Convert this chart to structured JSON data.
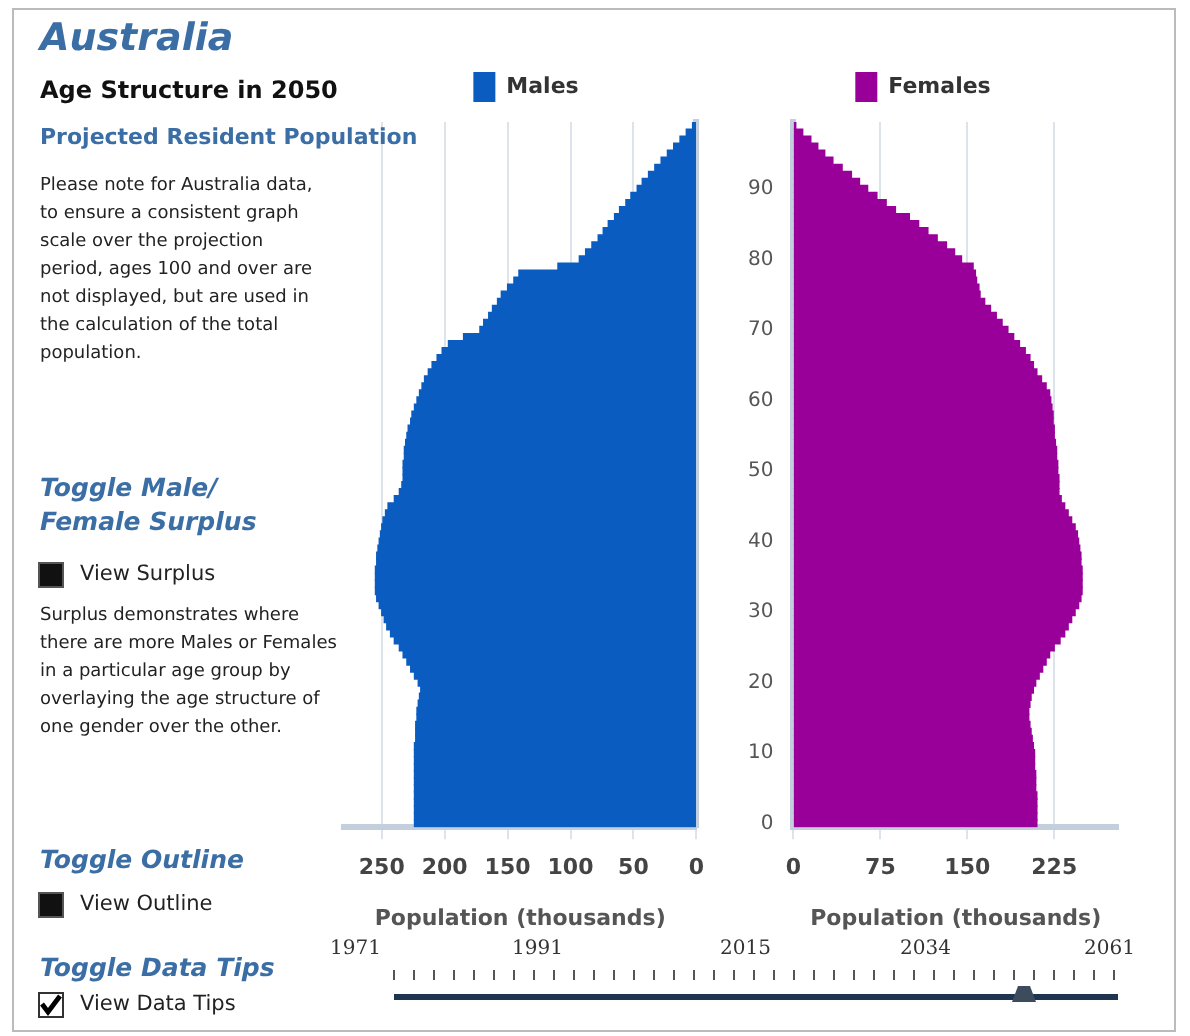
{
  "chart_data": [
    {
      "type": "bar",
      "title": "Australia",
      "subtitle": "Age Structure in 2050",
      "orientation": "horizontal",
      "xlabel": "Population (thousands)",
      "xlim": [
        280,
        0
      ],
      "xticks": [
        250,
        200,
        150,
        100,
        50,
        0
      ],
      "grid": "x",
      "legend": "top",
      "tick_labels": "x",
      "categories": [
        null,
        null,
        null,
        null,
        null,
        null,
        null,
        null,
        null,
        "90",
        null,
        null,
        null,
        null,
        null,
        null,
        null,
        null,
        null,
        "80",
        null,
        null,
        null,
        null,
        null,
        null,
        null,
        null,
        null,
        "70",
        null,
        null,
        null,
        null,
        null,
        null,
        null,
        null,
        null,
        "60",
        null,
        null,
        null,
        null,
        null,
        null,
        null,
        null,
        null,
        "50",
        null,
        null,
        null,
        null,
        null,
        null,
        null,
        null,
        null,
        "40",
        null,
        null,
        null,
        null,
        null,
        null,
        null,
        null,
        null,
        "30",
        null,
        null,
        null,
        null,
        null,
        null,
        null,
        null,
        null,
        "20",
        null,
        null,
        null,
        null,
        null,
        null,
        null,
        null,
        null,
        "10",
        null,
        null,
        null,
        null,
        null,
        null,
        null,
        null,
        null,
        "0"
      ],
      "series": [
        {
          "name": "Males",
          "color": "#0b5cc0",
          "values": [
            3,
            8,
            13,
            18,
            23,
            28,
            33,
            38,
            43,
            47,
            52,
            56,
            61,
            65,
            70,
            74,
            78,
            83,
            88,
            93,
            110,
            141,
            145,
            150,
            155,
            158,
            162,
            165,
            169,
            172,
            185,
            197,
            202,
            206,
            210,
            213,
            216,
            218,
            220,
            222,
            224,
            226,
            227,
            229,
            230,
            231,
            232,
            232,
            233,
            233,
            233,
            234,
            236,
            240,
            245,
            247,
            249,
            250,
            251,
            252,
            253,
            254,
            254,
            255,
            255,
            255,
            255,
            254,
            252,
            250,
            248,
            246,
            243,
            240,
            236,
            233,
            230,
            227,
            224,
            221,
            219,
            220,
            221,
            222,
            222,
            223,
            223,
            223,
            224,
            224,
            224,
            224,
            224,
            224,
            224,
            224,
            224,
            224,
            224,
            224
          ]
        }
      ],
      "annotations": [
        "Projected Resident Population",
        "Please note for Australia data, to ensure a consistent graph scale over the projection period, ages 100 and over are not displayed, but are used in the calculation of the total population.",
        "Toggle Male/ Female Surplus",
        "View Surplus",
        "Surplus demonstrates where there are more Males or Females in a particular age group by overlaying the age structure of one gender over the other.",
        "Toggle Outline",
        "View Outline",
        "Toggle Data Tips",
        "View Data Tips",
        "1971",
        "1991",
        "2015",
        "2034",
        "2061"
      ]
    },
    {
      "type": "bar",
      "orientation": "horizontal",
      "xlabel": "Population (thousands)",
      "xlim": [
        0,
        280
      ],
      "xticks": [
        0,
        75,
        150,
        225
      ],
      "grid": "x",
      "legend": "top",
      "categories": [
        null,
        null,
        null,
        null,
        null,
        null,
        null,
        null,
        null,
        "90",
        null,
        null,
        null,
        null,
        null,
        null,
        null,
        null,
        null,
        "80",
        null,
        null,
        null,
        null,
        null,
        null,
        null,
        null,
        null,
        "70",
        null,
        null,
        null,
        null,
        null,
        null,
        null,
        null,
        null,
        "60",
        null,
        null,
        null,
        null,
        null,
        null,
        null,
        null,
        null,
        "50",
        null,
        null,
        null,
        null,
        null,
        null,
        null,
        null,
        null,
        "40",
        null,
        null,
        null,
        null,
        null,
        null,
        null,
        null,
        null,
        "30",
        null,
        null,
        null,
        null,
        null,
        null,
        null,
        null,
        null,
        "20",
        null,
        null,
        null,
        null,
        null,
        null,
        null,
        null,
        null,
        "10",
        null,
        null,
        null,
        null,
        null,
        null,
        null,
        null,
        null,
        "0"
      ],
      "series": [
        {
          "name": "Females",
          "color": "#990099",
          "values": [
            2,
            8,
            15,
            21,
            27,
            34,
            42,
            50,
            57,
            64,
            72,
            80,
            88,
            100,
            108,
            116,
            124,
            132,
            139,
            145,
            155,
            157,
            158,
            160,
            161,
            165,
            170,
            175,
            180,
            185,
            190,
            195,
            200,
            204,
            207,
            210,
            214,
            218,
            221,
            222,
            223,
            224,
            224,
            225,
            225,
            226,
            227,
            227,
            228,
            228,
            229,
            229,
            229,
            231,
            234,
            237,
            240,
            243,
            245,
            246,
            247,
            248,
            248,
            249,
            249,
            249,
            249,
            248,
            246,
            243,
            240,
            237,
            234,
            230,
            225,
            221,
            218,
            215,
            212,
            209,
            207,
            205,
            204,
            203,
            203,
            204,
            205,
            206,
            207,
            208,
            208,
            208,
            209,
            209,
            209,
            210,
            210,
            210,
            210,
            210
          ]
        }
      ]
    }
  ]
}
